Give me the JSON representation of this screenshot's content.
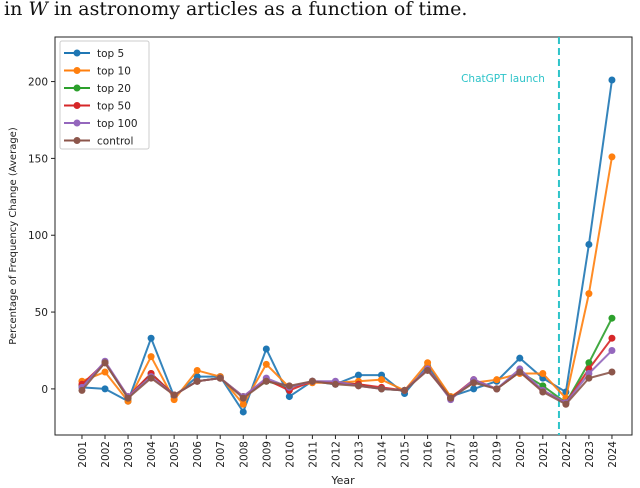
{
  "caption": {
    "prefix": "in ",
    "variable": "W",
    "suffix": " in astronomy articles as a function of time."
  },
  "chart_data": {
    "type": "line",
    "xlabel": "Year",
    "ylabel": "Percentage of Frequency Change (Average)",
    "x": [
      2001,
      2002,
      2003,
      2004,
      2005,
      2006,
      2007,
      2008,
      2009,
      2010,
      2011,
      2012,
      2013,
      2014,
      2015,
      2016,
      2017,
      2018,
      2019,
      2020,
      2021,
      2022,
      2023,
      2024
    ],
    "xlim": [
      1999.83,
      2024.87
    ],
    "ylim": [
      -30,
      229
    ],
    "yticks": [
      0,
      50,
      100,
      150,
      200
    ],
    "grid": false,
    "legend_placement": "top-left",
    "annotation": {
      "text": "ChatGPT launch",
      "x": 2021.7,
      "color": "#2ec4c9"
    },
    "series": [
      {
        "name": "top 5",
        "color": "#1f77b4",
        "values": [
          1,
          0,
          -8,
          33,
          -5,
          8,
          8,
          -15,
          26,
          -5,
          5,
          3,
          9,
          9,
          -3,
          15,
          -5,
          0,
          5,
          20,
          7,
          -2,
          94,
          201
        ]
      },
      {
        "name": "top 10",
        "color": "#ff7f0e",
        "values": [
          5,
          11,
          -8,
          21,
          -7,
          12,
          8,
          -10,
          16,
          1,
          4,
          4,
          5,
          6,
          -1,
          17,
          -5,
          4,
          6,
          10,
          10,
          -6,
          62,
          151
        ]
      },
      {
        "name": "top 20",
        "color": "#2ca02c",
        "values": [
          2,
          17,
          -6,
          10,
          -4,
          5,
          7,
          -5,
          5,
          1,
          5,
          4,
          3,
          0,
          -1,
          13,
          -6,
          5,
          0,
          11,
          2,
          -9,
          17,
          46
        ]
      },
      {
        "name": "top 50",
        "color": "#d62728",
        "values": [
          3,
          17,
          -5,
          10,
          -4,
          5,
          7,
          -5,
          6,
          -1,
          5,
          4,
          3,
          1,
          -1,
          13,
          -6,
          6,
          0,
          11,
          -1,
          -9,
          13,
          33
        ]
      },
      {
        "name": "top 100",
        "color": "#9467bd",
        "values": [
          1,
          18,
          -5,
          8,
          -4,
          5,
          7,
          -5,
          7,
          1,
          5,
          5,
          2,
          0,
          -1,
          13,
          -7,
          6,
          0,
          13,
          -1,
          -9,
          10,
          25
        ]
      },
      {
        "name": "control",
        "color": "#8c564b",
        "values": [
          -1,
          17,
          -6,
          7,
          -4,
          5,
          7,
          -6,
          5,
          2,
          5,
          3,
          2,
          0,
          -1,
          12,
          -6,
          4,
          0,
          11,
          -2,
          -10,
          7,
          11
        ]
      }
    ]
  }
}
